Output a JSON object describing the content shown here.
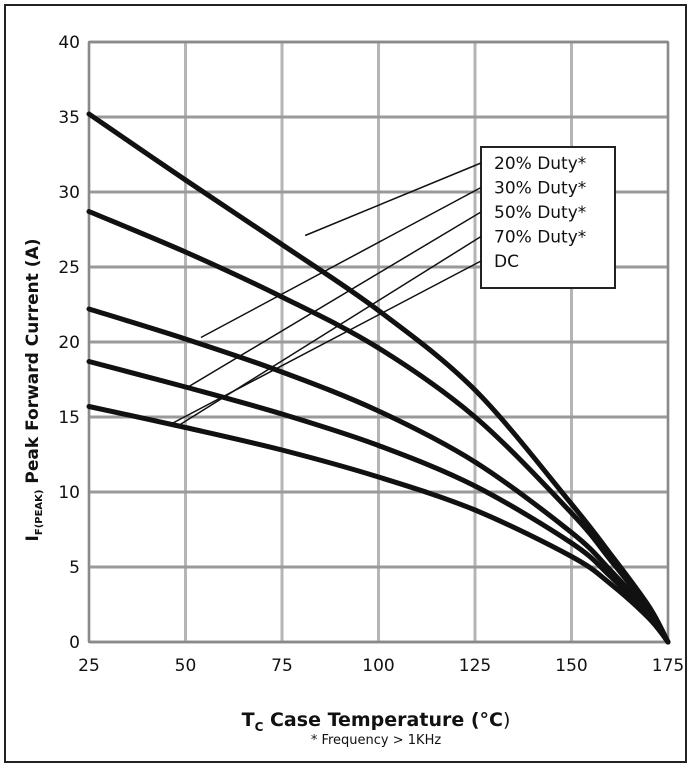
{
  "chart_data": {
    "type": "line",
    "title": "",
    "xlabel": {
      "main": "T",
      "sub": "C",
      "rest": " Case Temperature (",
      "degree": "°C",
      "close": ")"
    },
    "ylabel": {
      "main": "I",
      "sub": "F(PEAK)",
      "rest": " Peak Forward Current (A)"
    },
    "footnote": "* Frequency > 1KHz",
    "xlim": [
      25,
      175
    ],
    "ylim": [
      0,
      40
    ],
    "xticks": [
      25,
      50,
      75,
      100,
      125,
      150,
      175
    ],
    "yticks": [
      0,
      5,
      10,
      15,
      20,
      25,
      30,
      35,
      40
    ],
    "grid": true,
    "legend_placement": "top-right",
    "line_color": "#111111",
    "series": [
      {
        "name": "20% Duty*",
        "rated": 35.2,
        "leader_point": [
          81,
          27.1
        ]
      },
      {
        "name": "30% Duty*",
        "rated": 28.7,
        "leader_point": [
          54,
          20.3
        ]
      },
      {
        "name": "50% Duty*",
        "rated": 22.2,
        "leader_point": [
          50,
          16.9
        ]
      },
      {
        "name": "70% Duty*",
        "rated": 18.7,
        "leader_point": [
          48,
          14.4
        ]
      },
      {
        "name": "DC",
        "rated": 15.7,
        "leader_point": [
          46,
          14.5
        ]
      }
    ],
    "series_x": [
      25,
      50,
      75,
      100,
      125,
      150,
      160,
      170,
      175
    ],
    "series_values": [
      [
        35.2,
        30.8,
        26.5,
        22.1,
        16.8,
        9.2,
        5.9,
        2.4,
        0
      ],
      [
        28.7,
        26.0,
        23.0,
        19.6,
        15.0,
        8.6,
        5.5,
        2.2,
        0
      ],
      [
        22.2,
        20.2,
        18.0,
        15.4,
        12.0,
        7.3,
        4.8,
        1.9,
        0
      ],
      [
        18.7,
        17.0,
        15.2,
        13.1,
        10.4,
        6.6,
        4.4,
        1.8,
        0
      ],
      [
        15.7,
        14.3,
        12.8,
        11.0,
        8.8,
        5.7,
        3.9,
        1.6,
        0
      ]
    ]
  }
}
